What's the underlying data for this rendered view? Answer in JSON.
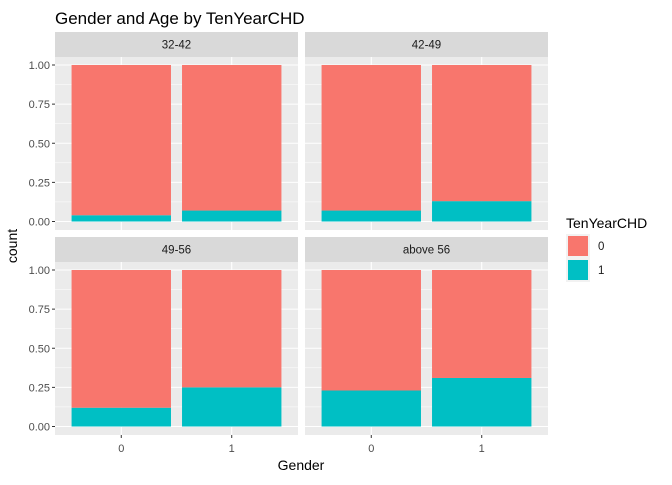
{
  "chart_data": {
    "type": "bar",
    "stacked": true,
    "position": "fill",
    "title": "Gender and Age by TenYearCHD",
    "xlabel": "Gender",
    "ylabel": "count",
    "categories": [
      "0",
      "1"
    ],
    "y_ticks": [
      "0.00",
      "0.25",
      "0.50",
      "0.75",
      "1.00"
    ],
    "ylim": [
      0,
      1
    ],
    "grid": true,
    "legend": {
      "title": "TenYearCHD",
      "position": "right",
      "entries": [
        {
          "label": "0",
          "color": "#F8766D"
        },
        {
          "label": "1",
          "color": "#00BFC4"
        }
      ]
    },
    "panels": [
      {
        "strip": "32-42",
        "series": [
          {
            "name": "0",
            "color": "#F8766D",
            "values": [
              0.96,
              0.93
            ]
          },
          {
            "name": "1",
            "color": "#00BFC4",
            "values": [
              0.04,
              0.07
            ]
          }
        ]
      },
      {
        "strip": "42-49",
        "series": [
          {
            "name": "0",
            "color": "#F8766D",
            "values": [
              0.93,
              0.87
            ]
          },
          {
            "name": "1",
            "color": "#00BFC4",
            "values": [
              0.07,
              0.13
            ]
          }
        ]
      },
      {
        "strip": "49-56",
        "series": [
          {
            "name": "0",
            "color": "#F8766D",
            "values": [
              0.88,
              0.75
            ]
          },
          {
            "name": "1",
            "color": "#00BFC4",
            "values": [
              0.12,
              0.25
            ]
          }
        ]
      },
      {
        "strip": "above 56",
        "series": [
          {
            "name": "0",
            "color": "#F8766D",
            "values": [
              0.77,
              0.69
            ]
          },
          {
            "name": "1",
            "color": "#00BFC4",
            "values": [
              0.23,
              0.31
            ]
          }
        ]
      }
    ]
  }
}
